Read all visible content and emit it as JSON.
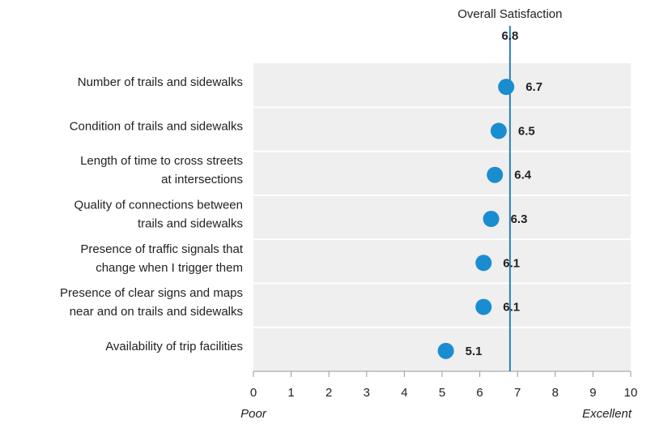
{
  "chart_data": {
    "type": "dot",
    "categories": [
      [
        "Number of trails and sidewalks"
      ],
      [
        "Condition of trails and sidewalks"
      ],
      [
        "Length of time to cross streets",
        "at intersections"
      ],
      [
        "Quality of connections between",
        "trails and sidewalks"
      ],
      [
        "Presence of traffic signals that",
        "change when I trigger them"
      ],
      [
        "Presence of clear signs and maps",
        "near and on trails and sidewalks"
      ],
      [
        "Availability of trip facilities"
      ]
    ],
    "values": [
      6.7,
      6.5,
      6.4,
      6.3,
      6.1,
      6.1,
      5.1
    ],
    "color": "#1a8dd0",
    "reference_line": {
      "label": "Overall Satisfaction",
      "value": 6.8,
      "color": "#2a7fb8"
    },
    "xlim": [
      0,
      10
    ],
    "xticks": [
      0,
      1,
      2,
      3,
      4,
      5,
      6,
      7,
      8,
      9,
      10
    ],
    "x_min_label": "Poor",
    "x_max_label": "Excellent"
  }
}
